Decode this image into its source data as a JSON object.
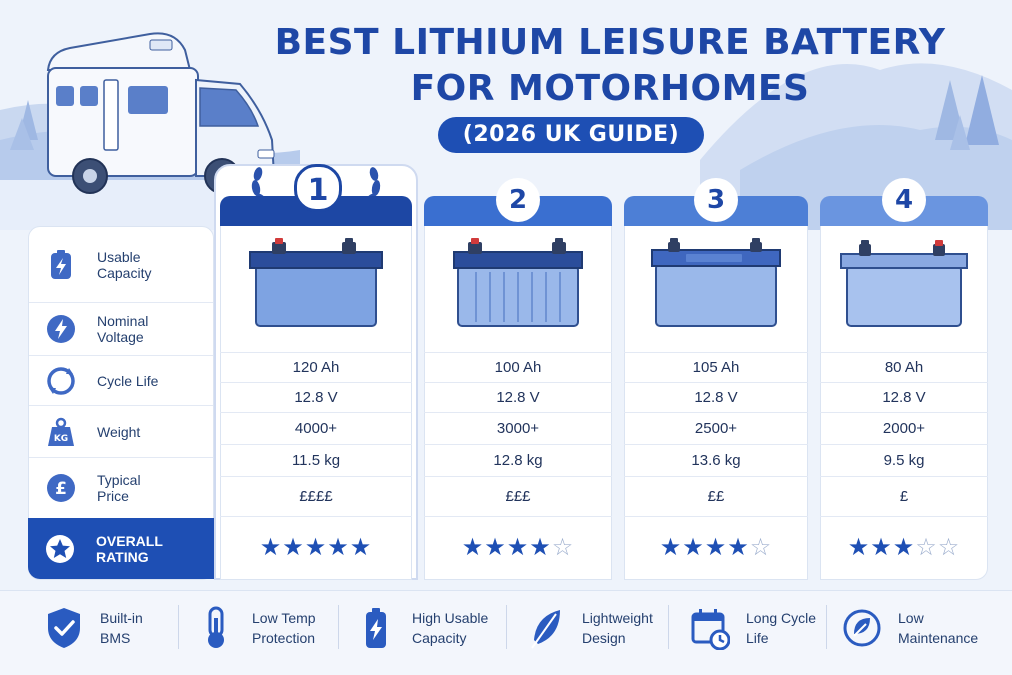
{
  "title": {
    "line1": "BEST LITHIUM LEISURE BATTERY",
    "line2": "FOR MOTORHOMES",
    "subtitle": "(2026 UK GUIDE)"
  },
  "row_labels": [
    {
      "line1": "Usable",
      "line2": "Capacity",
      "icon": "battery-bolt-icon"
    },
    {
      "line1": "Nominal",
      "line2": "Voltage",
      "icon": "lightning-icon"
    },
    {
      "line1": "Cycle Life",
      "line2": "",
      "icon": "cycle-arrows-icon"
    },
    {
      "line1": "Weight",
      "line2": "",
      "icon": "kg-weight-icon",
      "icon_text": "KG"
    },
    {
      "line1": "Typical",
      "line2": "Price",
      "icon": "pound-icon",
      "icon_text": "£"
    }
  ],
  "rating_label": {
    "line1": "OVERALL",
    "line2": "RATING",
    "icon": "star-icon"
  },
  "batteries": [
    {
      "rank": "1",
      "capacity": "120 Ah",
      "voltage": "12.8 V",
      "cycle_life": "4000+",
      "weight": "11.5 kg",
      "price": "££££",
      "rating": 5,
      "stars_on": "★★★★★",
      "stars_off": ""
    },
    {
      "rank": "2",
      "capacity": "100 Ah",
      "voltage": "12.8 V",
      "cycle_life": "3000+",
      "weight": "12.8 kg",
      "price": "£££",
      "rating": 4,
      "stars_on": "★★★★",
      "stars_off": "☆"
    },
    {
      "rank": "3",
      "capacity": "105 Ah",
      "voltage": "12.8 V",
      "cycle_life": "2500+",
      "weight": "13.6 kg",
      "price": "££",
      "rating": 4,
      "stars_on": "★★★★",
      "stars_off": "☆"
    },
    {
      "rank": "4",
      "capacity": "80 Ah",
      "voltage": "12.8 V",
      "cycle_life": "2000+",
      "weight": "9.5 kg",
      "price": "£",
      "rating": 3,
      "stars_on": "★★★",
      "stars_off": "☆☆"
    }
  ],
  "features": [
    {
      "line1": "Built-in",
      "line2": "BMS",
      "icon": "shield-check-icon"
    },
    {
      "line1": "Low Temp",
      "line2": "Protection",
      "icon": "thermometer-icon"
    },
    {
      "line1": "High Usable",
      "line2": "Capacity",
      "icon": "battery-bolt-icon"
    },
    {
      "line1": "Lightweight",
      "line2": "Design",
      "icon": "feather-icon"
    },
    {
      "line1": "Long Cycle",
      "line2": "Life",
      "icon": "calendar-clock-icon"
    },
    {
      "line1": "Low",
      "line2": "Maintenance",
      "icon": "leaf-icon"
    }
  ],
  "colors": {
    "primary": "#1e4fb4",
    "title": "#1e47a6",
    "rank1_header": "#1d47a4",
    "rank2_header": "#3a6fd0",
    "rank3_header": "#4d7fd6",
    "rank4_header": "#6a95e0",
    "background": "#eef3fb"
  }
}
